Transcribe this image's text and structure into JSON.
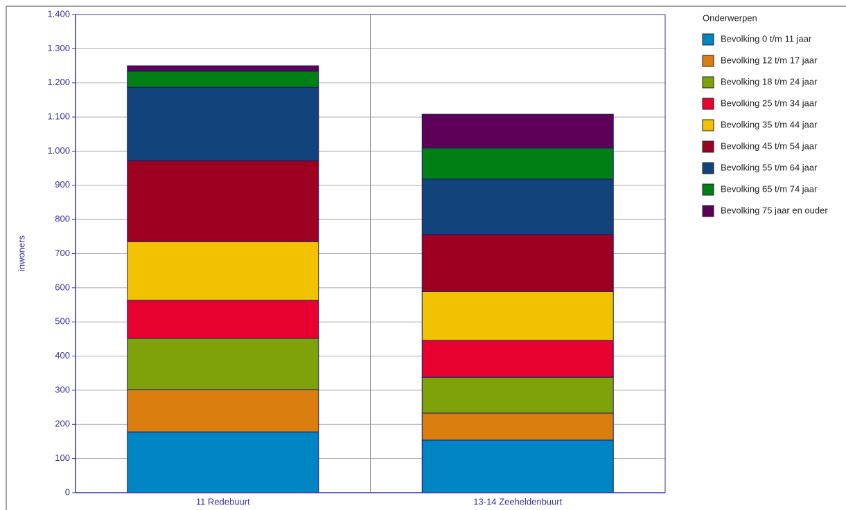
{
  "chart_data": {
    "type": "stacked-bar",
    "y_label": "inwoners",
    "legend_title": "Onderwerpen",
    "categories": [
      "11 Redebuurt",
      "13-14 Zeeheldenbuurt"
    ],
    "series": [
      {
        "name": "Bevolking 0 t/m 11 jaar",
        "color": "#0085c4",
        "values": [
          178,
          154
        ]
      },
      {
        "name": "Bevolking 12 t/m 17 jaar",
        "color": "#d97d0f",
        "values": [
          124,
          79
        ]
      },
      {
        "name": "Bevolking 18 t/m 24 jaar",
        "color": "#7fa10a",
        "values": [
          150,
          105
        ]
      },
      {
        "name": "Bevolking 25 t/m 34 jaar",
        "color": "#e8002f",
        "values": [
          111,
          108
        ]
      },
      {
        "name": "Bevolking 35 t/m 44 jaar",
        "color": "#f2c200",
        "values": [
          172,
          143
        ]
      },
      {
        "name": "Bevolking 45 t/m 54 jaar",
        "color": "#9e0022",
        "values": [
          237,
          167
        ]
      },
      {
        "name": "Bevolking 55 t/m 64 jaar",
        "color": "#12437a",
        "values": [
          215,
          162
        ]
      },
      {
        "name": "Bevolking 65 t/m 74 jaar",
        "color": "#007f15",
        "values": [
          47,
          91
        ]
      },
      {
        "name": "Bevolking 75 jaar en ouder",
        "color": "#5e0058",
        "values": [
          16,
          99
        ]
      }
    ],
    "ylim": [
      0,
      1400
    ],
    "yticks": [
      0,
      100,
      200,
      300,
      400,
      500,
      600,
      700,
      800,
      900,
      {
        "value": 1000,
        "label": "1.000"
      },
      {
        "value": 1100,
        "label": "1.100"
      },
      {
        "value": 1200,
        "label": "1.200"
      },
      {
        "value": 1300,
        "label": "1.300"
      },
      {
        "value": 1400,
        "label": "1.400"
      }
    ],
    "grid": true,
    "legend_position": "right"
  }
}
